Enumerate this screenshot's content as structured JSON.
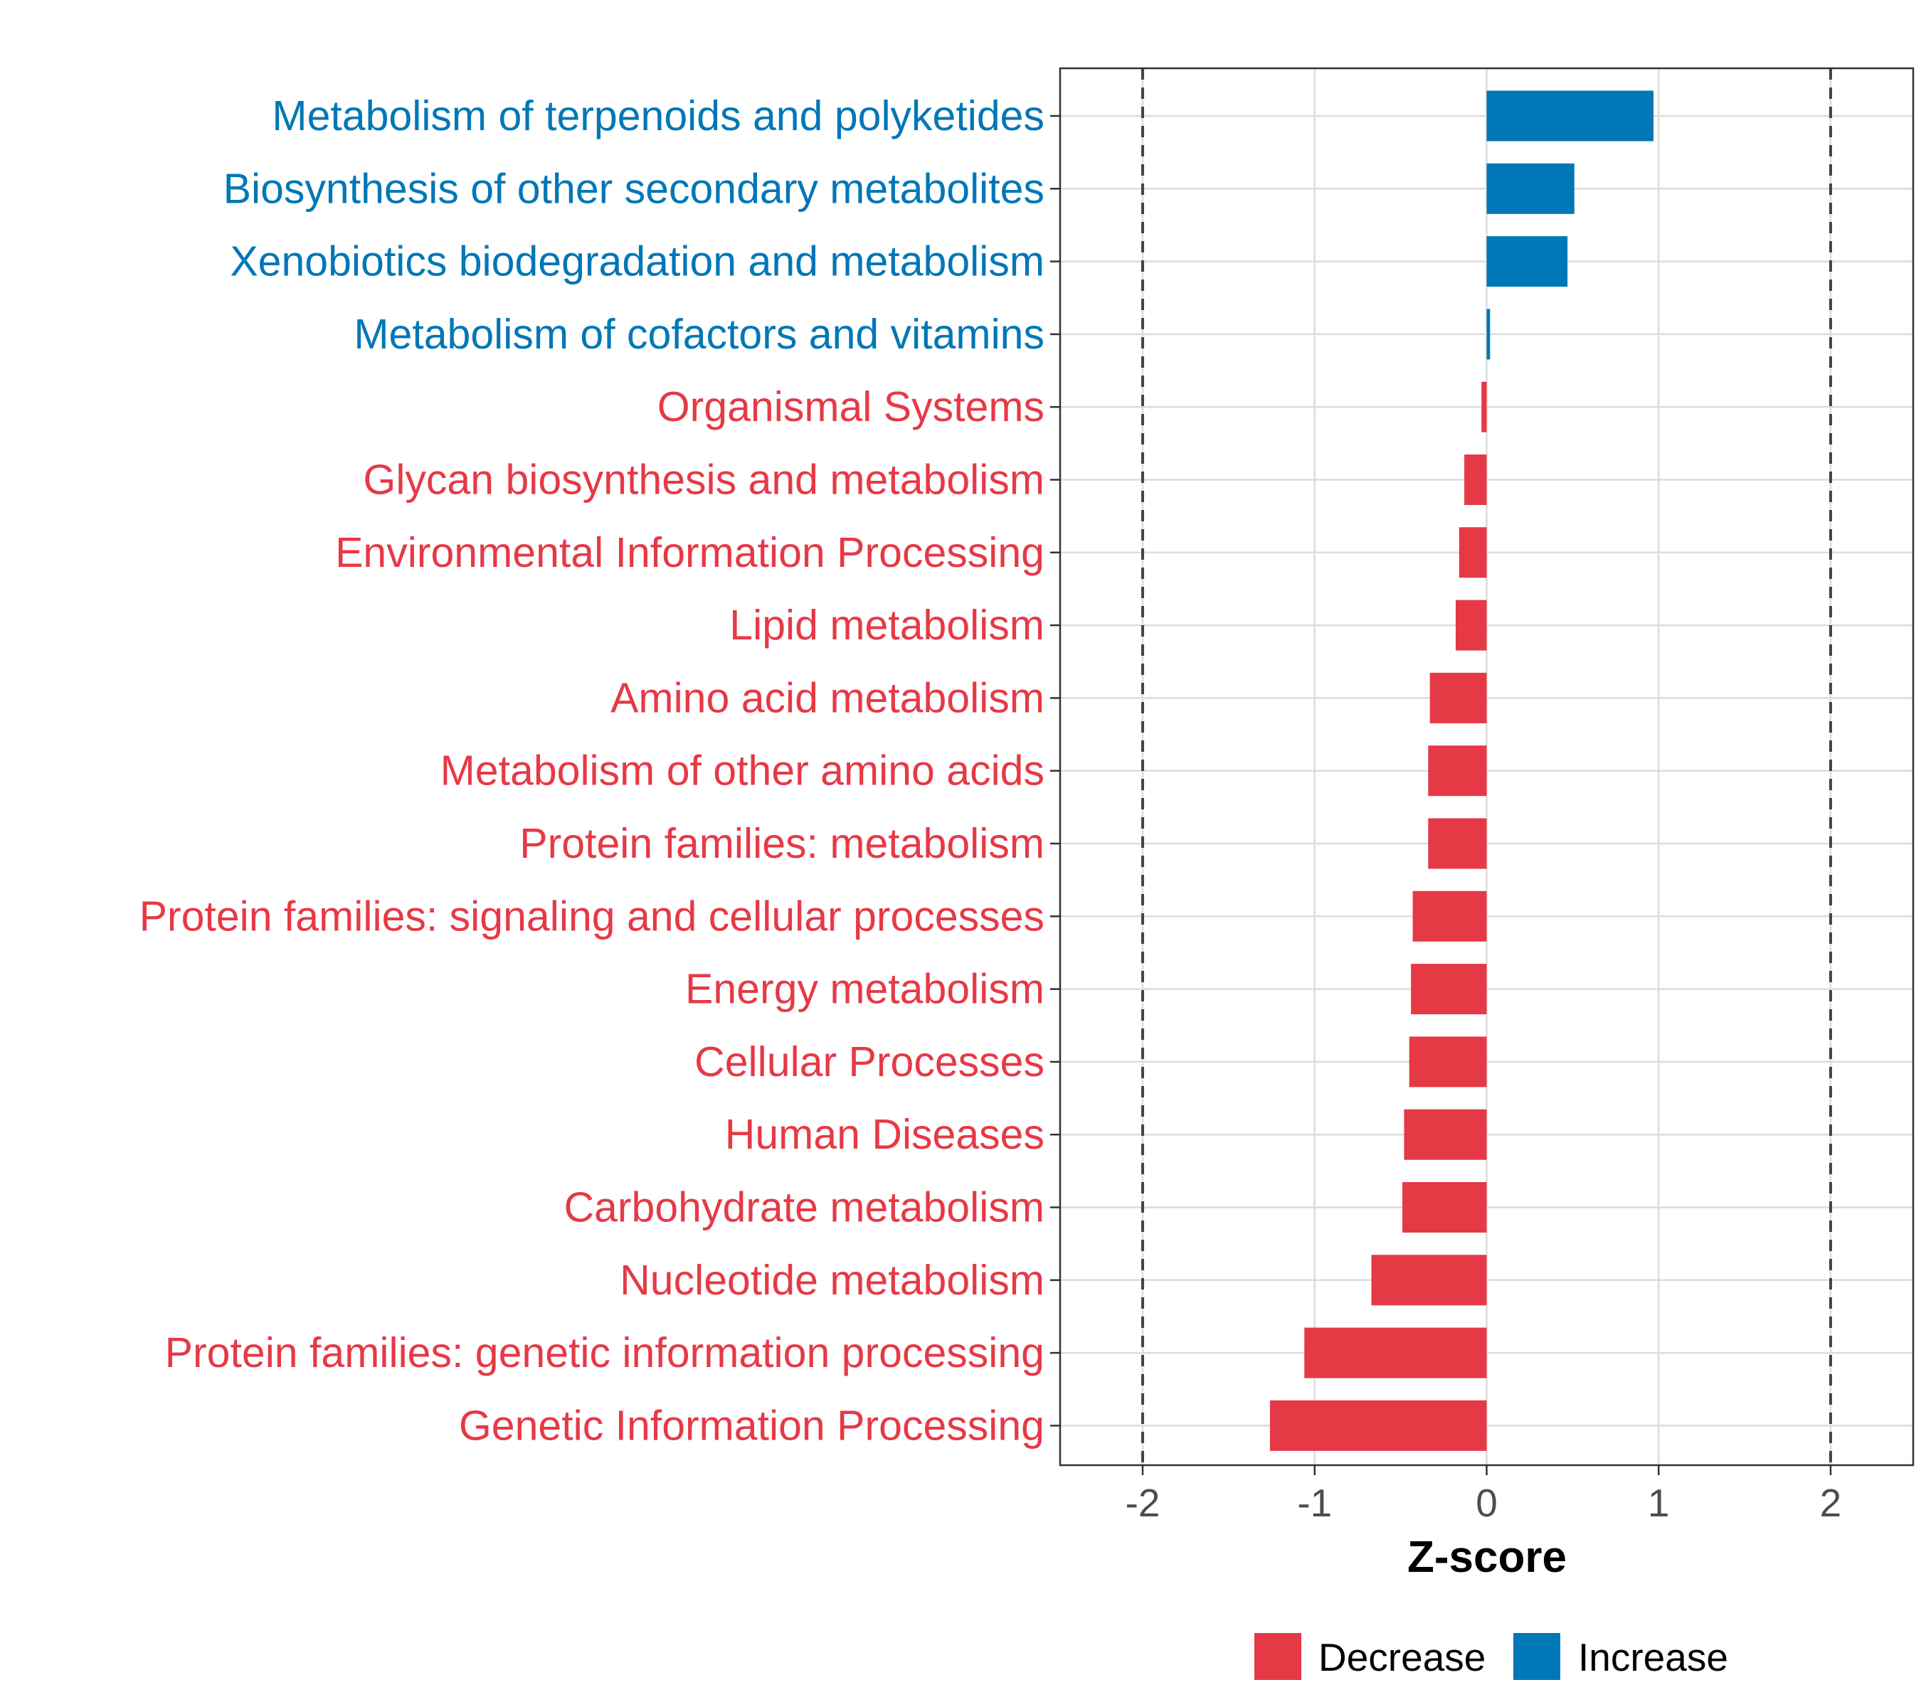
{
  "chart_data": {
    "type": "bar",
    "orientation": "horizontal",
    "xlabel": "Z-score",
    "xlim": [
      -2.48,
      2.48
    ],
    "xticks": [
      -2,
      -1,
      0,
      1,
      2
    ],
    "tick_labels": [
      "-2",
      "-1",
      "0",
      "1",
      "2"
    ],
    "reference_lines": [
      -2,
      2
    ],
    "grid": true,
    "colors": {
      "Decrease": "#E63946",
      "Increase": "#0077B6"
    },
    "legend": {
      "placement": "bottom",
      "entries": [
        "Decrease",
        "Increase"
      ]
    },
    "categories": [
      "Metabolism of terpenoids and polyketides",
      "Biosynthesis of other secondary metabolites",
      "Xenobiotics biodegradation and metabolism",
      "Metabolism of cofactors and vitamins",
      "Organismal Systems",
      "Glycan biosynthesis and metabolism",
      "Environmental Information Processing",
      "Lipid metabolism",
      "Amino acid metabolism",
      "Metabolism of other amino acids",
      "Protein families: metabolism",
      "Protein families: signaling and cellular processes",
      "Energy metabolism",
      "Cellular Processes",
      "Human Diseases",
      "Carbohydrate metabolism",
      "Nucleotide metabolism",
      "Protein families: genetic information processing",
      "Genetic Information Processing"
    ],
    "values": [
      0.97,
      0.51,
      0.47,
      0.02,
      -0.03,
      -0.13,
      -0.16,
      -0.18,
      -0.33,
      -0.34,
      -0.34,
      -0.43,
      -0.44,
      -0.45,
      -0.48,
      -0.49,
      -0.67,
      -1.06,
      -1.26
    ],
    "groups": [
      "Increase",
      "Increase",
      "Increase",
      "Increase",
      "Decrease",
      "Decrease",
      "Decrease",
      "Decrease",
      "Decrease",
      "Decrease",
      "Decrease",
      "Decrease",
      "Decrease",
      "Decrease",
      "Decrease",
      "Decrease",
      "Decrease",
      "Decrease",
      "Decrease"
    ]
  }
}
